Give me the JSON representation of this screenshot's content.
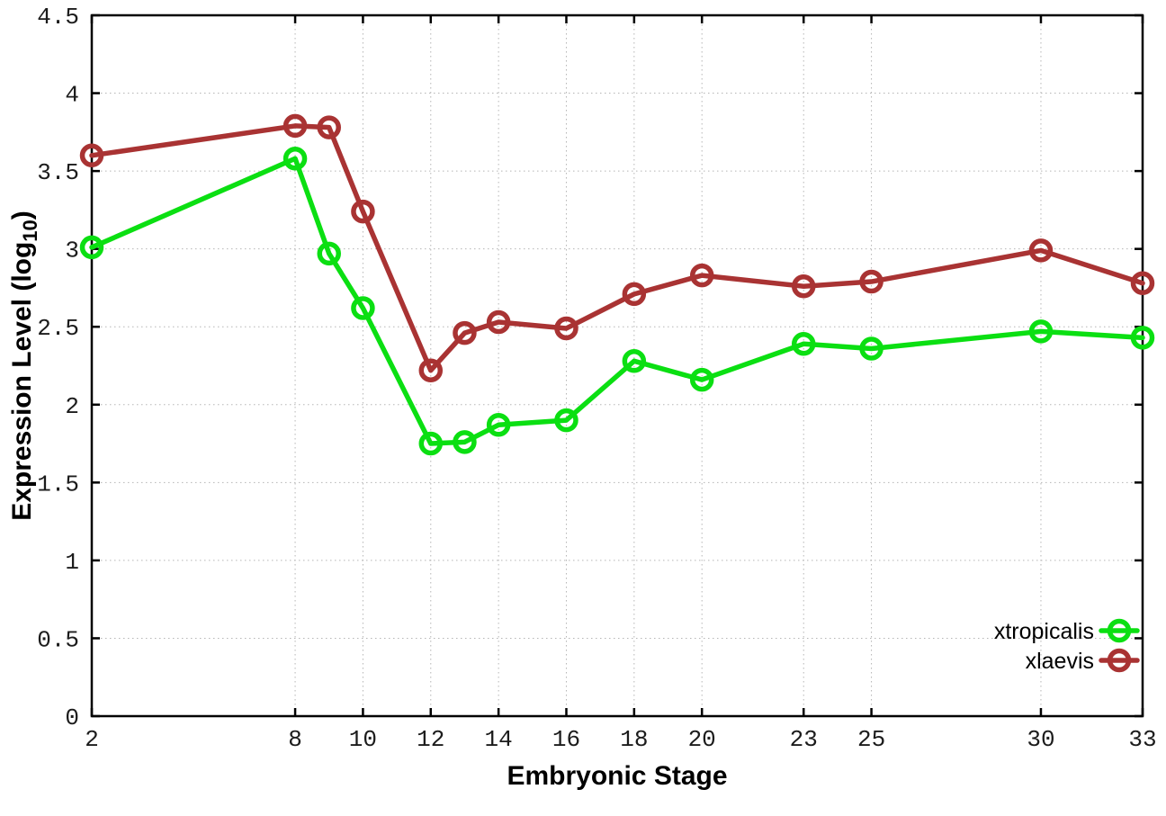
{
  "chart_data": {
    "type": "line",
    "title": "",
    "xlabel": "Embryonic Stage",
    "ylabel": {
      "main": "Expression Level (log",
      "sub": "10",
      "close": ")"
    },
    "xlim": [
      2,
      33
    ],
    "ylim": [
      0,
      4.5
    ],
    "grid": "dotted",
    "legend_position": "bottom-right",
    "x_ticks": [
      {
        "value": 2,
        "label": "2"
      },
      {
        "value": 8,
        "label": "8"
      },
      {
        "value": 10,
        "label": "10"
      },
      {
        "value": 12,
        "label": "12"
      },
      {
        "value": 14,
        "label": "14"
      },
      {
        "value": 16,
        "label": "16"
      },
      {
        "value": 18,
        "label": "18"
      },
      {
        "value": 20,
        "label": "20"
      },
      {
        "value": 23,
        "label": "23"
      },
      {
        "value": 25,
        "label": "25"
      },
      {
        "value": 30,
        "label": "30"
      },
      {
        "value": 33,
        "label": "33"
      }
    ],
    "y_ticks": [
      {
        "value": 0,
        "label": "0"
      },
      {
        "value": 0.5,
        "label": "0.5"
      },
      {
        "value": 1,
        "label": "1"
      },
      {
        "value": 1.5,
        "label": "1.5"
      },
      {
        "value": 2,
        "label": "2"
      },
      {
        "value": 2.5,
        "label": "2.5"
      },
      {
        "value": 3,
        "label": "3"
      },
      {
        "value": 3.5,
        "label": "3.5"
      },
      {
        "value": 4,
        "label": "4"
      },
      {
        "value": 4.5,
        "label": "4.5"
      }
    ],
    "x": [
      2,
      8,
      9,
      10,
      12,
      13,
      14,
      16,
      18,
      20,
      23,
      25,
      30,
      33
    ],
    "series": [
      {
        "name": "xtropicalis",
        "color": "#0bdf12",
        "values": [
          3.01,
          3.58,
          2.97,
          2.62,
          1.75,
          1.76,
          1.87,
          1.9,
          2.28,
          2.16,
          2.39,
          2.36,
          2.47,
          2.43
        ]
      },
      {
        "name": "xlaevis",
        "color": "#a93333",
        "values": [
          3.6,
          3.79,
          3.78,
          3.24,
          2.22,
          2.46,
          2.53,
          2.49,
          2.71,
          2.83,
          2.76,
          2.79,
          2.99,
          2.78
        ]
      }
    ],
    "colors": {
      "border": "#000000",
      "grid": "#b5b5b5",
      "tick_text": "#1c1c1c"
    }
  }
}
